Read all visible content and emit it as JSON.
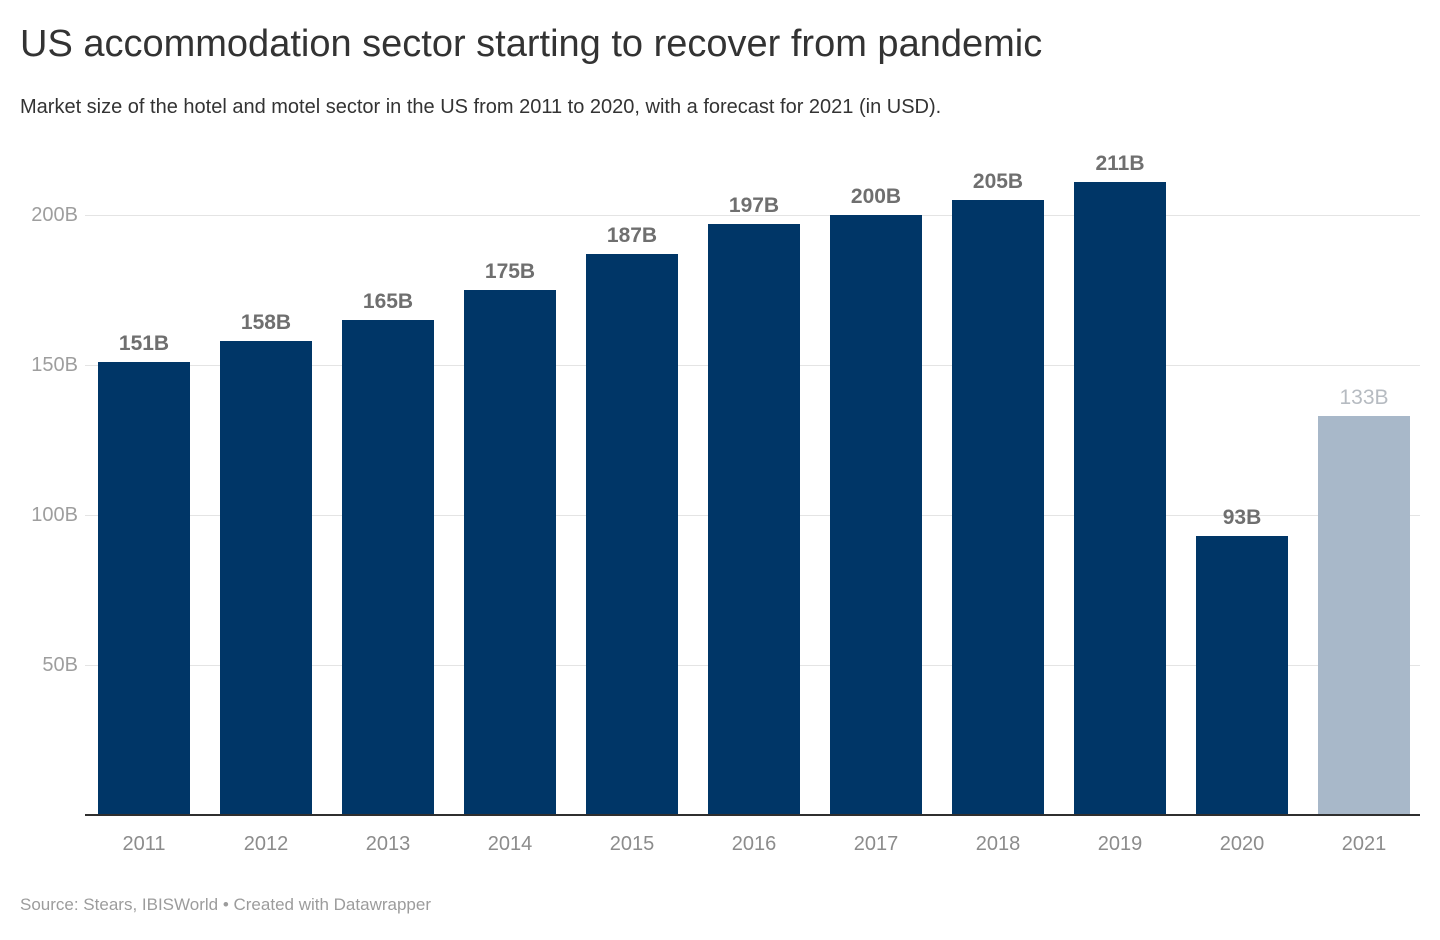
{
  "header": {
    "title": "US accommodation sector starting to recover from pandemic",
    "subtitle": "Market size of the hotel and motel sector in the US from 2011 to 2020, with a forecast for 2021 (in USD)."
  },
  "footer": {
    "source": "Source: Stears, IBISWorld • Created with Datawrapper"
  },
  "chart_data": {
    "type": "bar",
    "title": "US accommodation sector starting to recover from pandemic",
    "subtitle": "Market size of the hotel and motel sector in the US from 2011 to 2020, with a forecast for 2021 (in USD).",
    "categories": [
      "2011",
      "2012",
      "2013",
      "2014",
      "2015",
      "2016",
      "2017",
      "2018",
      "2019",
      "2020",
      "2021"
    ],
    "values": [
      151,
      158,
      165,
      175,
      187,
      197,
      200,
      205,
      211,
      93,
      133
    ],
    "value_labels": [
      "151B",
      "158B",
      "165B",
      "175B",
      "187B",
      "197B",
      "200B",
      "205B",
      "211B",
      "93B",
      "133B"
    ],
    "unit": "B",
    "forecast_index": 10,
    "y_ticks": [
      {
        "value": 50,
        "label": "50B"
      },
      {
        "value": 100,
        "label": "100B"
      },
      {
        "value": 150,
        "label": "150B"
      },
      {
        "value": 200,
        "label": "200B"
      }
    ],
    "ylim": [
      0,
      225
    ],
    "grid": "horizontal",
    "legend": "none",
    "colors": {
      "bar": "#003667",
      "forecast_bar": "#a8b8c9",
      "value_label": "#6f6f6f",
      "forecast_value_label": "#b6bbc1",
      "y_tick_label": "#9e9e9e",
      "x_tick_label": "#8c8c8c",
      "gridline": "#e4e4e4",
      "baseline": "#2f2f2f",
      "title": "#333333"
    }
  }
}
